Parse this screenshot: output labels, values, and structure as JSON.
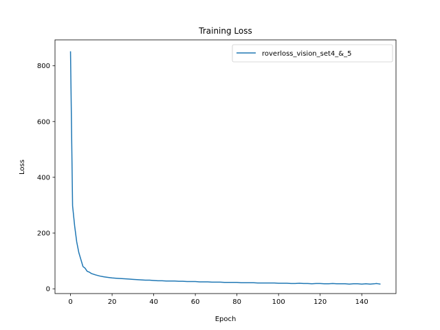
{
  "chart_data": {
    "type": "line",
    "title": "Training Loss",
    "xlabel": "Epoch",
    "ylabel": "Loss",
    "xlim": [
      -7.45,
      156.45
    ],
    "ylim": [
      -17,
      893
    ],
    "xticks": [
      0,
      20,
      40,
      60,
      80,
      100,
      120,
      140
    ],
    "yticks": [
      0,
      200,
      400,
      600,
      800
    ],
    "grid": false,
    "legend_position": "top-right",
    "series": [
      {
        "name": "roverloss_vision_set4_&_5",
        "color": "#1f77b4",
        "x": [
          0,
          1,
          2,
          3,
          4,
          5,
          6,
          7,
          8,
          9,
          10,
          12,
          14,
          16,
          18,
          20,
          22,
          24,
          26,
          28,
          30,
          32,
          34,
          36,
          38,
          40,
          42,
          44,
          46,
          48,
          50,
          52,
          54,
          56,
          58,
          60,
          62,
          64,
          66,
          68,
          70,
          72,
          74,
          76,
          78,
          80,
          82,
          84,
          86,
          88,
          90,
          92,
          94,
          96,
          98,
          100,
          102,
          104,
          106,
          108,
          110,
          112,
          114,
          116,
          118,
          120,
          122,
          124,
          126,
          128,
          130,
          132,
          134,
          136,
          138,
          140,
          142,
          144,
          146,
          147,
          148,
          149
        ],
        "values": [
          852,
          298,
          225,
          168,
          130,
          105,
          80,
          74,
          63,
          60,
          55,
          50,
          46,
          43,
          41,
          39,
          38,
          37,
          36,
          35,
          34,
          33,
          32,
          31,
          31,
          30,
          29,
          29,
          28,
          28,
          28,
          27,
          27,
          26,
          26,
          26,
          25,
          25,
          25,
          24,
          24,
          24,
          23,
          23,
          23,
          23,
          22,
          22,
          22,
          22,
          21,
          21,
          21,
          21,
          21,
          20,
          20,
          20,
          19,
          19,
          20,
          19,
          19,
          18,
          19,
          19,
          18,
          18,
          19,
          18,
          18,
          18,
          17,
          18,
          18,
          17,
          18,
          17,
          18,
          19,
          18,
          17
        ]
      }
    ]
  }
}
